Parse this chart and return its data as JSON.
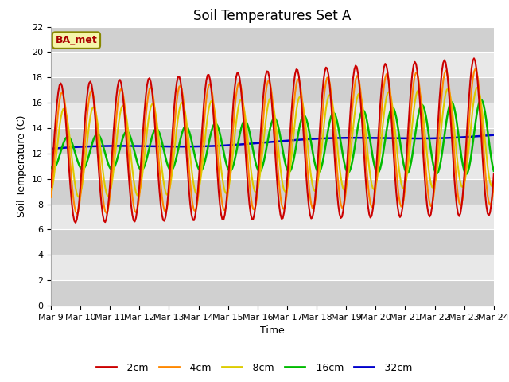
{
  "title": "Soil Temperatures Set A",
  "xlabel": "Time",
  "ylabel": "Soil Temperature (C)",
  "ylim": [
    0,
    22
  ],
  "x_tick_labels": [
    "Mar 9",
    "Mar 10",
    "Mar 11",
    "Mar 12",
    "Mar 13",
    "Mar 14",
    "Mar 15",
    "Mar 16",
    "Mar 17",
    "Mar 18",
    "Mar 19",
    "Mar 20",
    "Mar 21",
    "Mar 22",
    "Mar 23",
    "Mar 24"
  ],
  "annotation_text": "BA_met",
  "colors": {
    "-2cm": "#cc0000",
    "-4cm": "#ff8800",
    "-8cm": "#ddcc00",
    "-16cm": "#00bb00",
    "-32cm": "#0000cc"
  },
  "legend_labels": [
    "-2cm",
    "-4cm",
    "-8cm",
    "-16cm",
    "-32cm"
  ],
  "plot_bg_color": "#e8e8e8",
  "band_color": "#d0d0d0",
  "title_fontsize": 12,
  "axis_label_fontsize": 9,
  "tick_fontsize": 8
}
